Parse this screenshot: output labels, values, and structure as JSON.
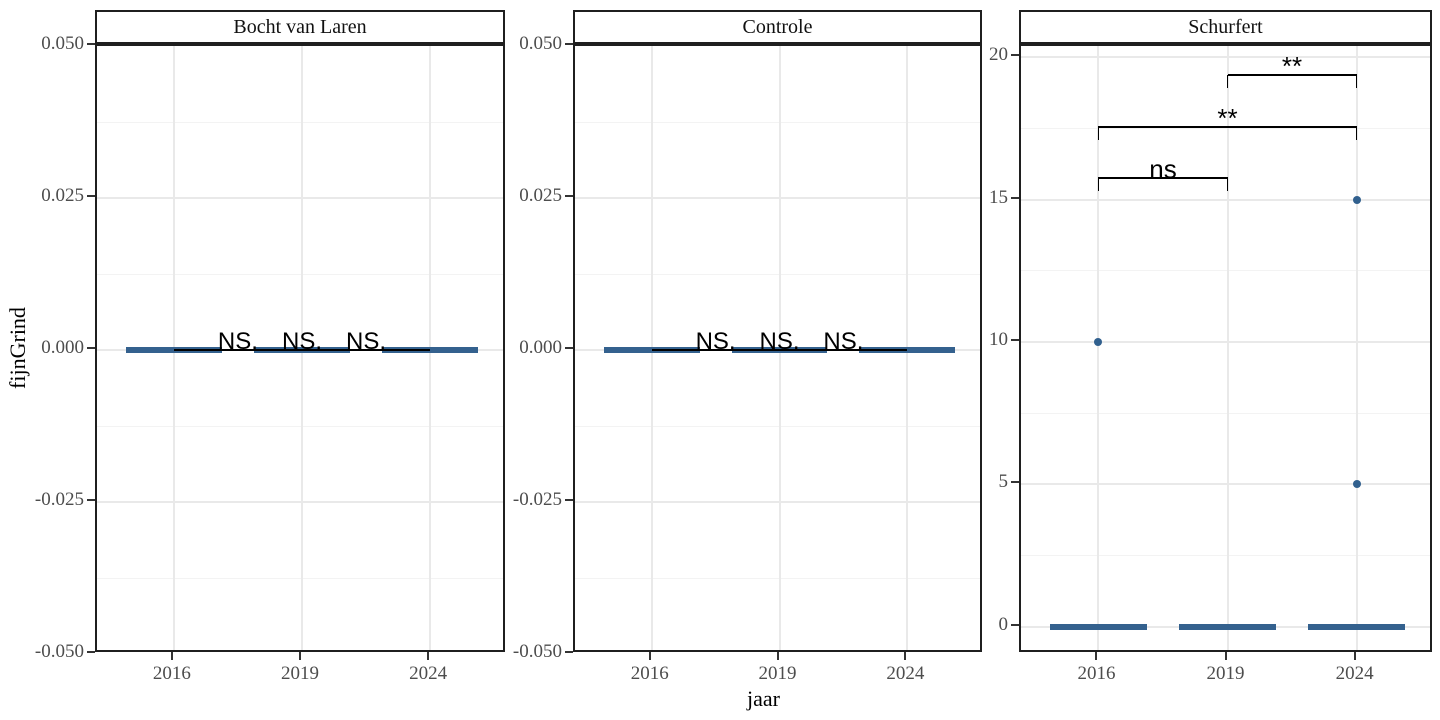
{
  "figure": {
    "x_axis_title": "jaar",
    "y_axis_title": "fijnGrind",
    "background": "#ffffff",
    "colors": {
      "box_fill": "#34618E",
      "point_fill": "#31608E",
      "panel_border": "#1F1F1F",
      "grid_major": "#E9E9E9",
      "grid_minor": "#F3F3F3",
      "axis_text": "#4D4D4D",
      "significance": "#000000",
      "strip_text": "#111111"
    }
  },
  "chart_data": {
    "type": "boxplot-faceted",
    "x_categories": [
      "2016",
      "2019",
      "2024"
    ],
    "xlabel": "jaar",
    "ylabel": "fijnGrind",
    "grid": "on",
    "panels": [
      {
        "title": "Bocht van Laren",
        "ylim": [
          -0.05,
          0.05
        ],
        "y_ticks": [
          {
            "value": 0.05,
            "label": "0.050"
          },
          {
            "value": 0.025,
            "label": "0.025"
          },
          {
            "value": 0.0,
            "label": "0.000"
          },
          {
            "value": -0.025,
            "label": "-0.025"
          },
          {
            "value": -0.05,
            "label": "-0.050"
          }
        ],
        "y_minor": [
          0.0375,
          0.0125,
          -0.0125,
          -0.0375
        ],
        "boxes": [
          {
            "category": "2016",
            "value": 0
          },
          {
            "category": "2019",
            "value": 0
          },
          {
            "category": "2024",
            "value": 0
          }
        ],
        "outlier_points": [],
        "comparisons": [
          {
            "group1": "2016",
            "group2": "2019",
            "label": "NS.",
            "style": "flat",
            "y": 0
          },
          {
            "group1": "2016",
            "group2": "2024",
            "label": "NS.",
            "style": "flat",
            "y": 0
          },
          {
            "group1": "2019",
            "group2": "2024",
            "label": "NS.",
            "style": "flat",
            "y": 0
          }
        ]
      },
      {
        "title": "Controle",
        "ylim": [
          -0.05,
          0.05
        ],
        "y_ticks": [
          {
            "value": 0.05,
            "label": "0.050"
          },
          {
            "value": 0.025,
            "label": "0.025"
          },
          {
            "value": 0.0,
            "label": "0.000"
          },
          {
            "value": -0.025,
            "label": "-0.025"
          },
          {
            "value": -0.05,
            "label": "-0.050"
          }
        ],
        "y_minor": [
          0.0375,
          0.0125,
          -0.0125,
          -0.0375
        ],
        "boxes": [
          {
            "category": "2016",
            "value": 0
          },
          {
            "category": "2019",
            "value": 0
          },
          {
            "category": "2024",
            "value": 0
          }
        ],
        "outlier_points": [],
        "comparisons": [
          {
            "group1": "2016",
            "group2": "2019",
            "label": "NS.",
            "style": "flat",
            "y": 0
          },
          {
            "group1": "2016",
            "group2": "2024",
            "label": "NS.",
            "style": "flat",
            "y": 0
          },
          {
            "group1": "2019",
            "group2": "2024",
            "label": "NS.",
            "style": "flat",
            "y": 0
          }
        ]
      },
      {
        "title": "Schurfert",
        "ylim": [
          -0.95,
          20.39
        ],
        "y_ticks": [
          {
            "value": 20,
            "label": "20"
          },
          {
            "value": 15,
            "label": "15"
          },
          {
            "value": 10,
            "label": "10"
          },
          {
            "value": 5,
            "label": "5"
          },
          {
            "value": 0,
            "label": "0"
          }
        ],
        "y_minor": [
          17.5,
          12.5,
          7.5,
          2.5
        ],
        "boxes": [
          {
            "category": "2016",
            "value": 0
          },
          {
            "category": "2019",
            "value": 0
          },
          {
            "category": "2024",
            "value": 0
          }
        ],
        "outlier_points": [
          {
            "category": "2016",
            "y": 10
          },
          {
            "category": "2024",
            "y": 15
          },
          {
            "category": "2024",
            "y": 5
          }
        ],
        "comparisons": [
          {
            "group1": "2016",
            "group2": "2019",
            "label": "ns",
            "style": "bracket",
            "y": 15.75
          },
          {
            "group1": "2016",
            "group2": "2024",
            "label": "**",
            "style": "bracket",
            "y": 17.54
          },
          {
            "group1": "2019",
            "group2": "2024",
            "label": "**",
            "style": "bracket",
            "y": 19.37
          }
        ]
      }
    ]
  }
}
